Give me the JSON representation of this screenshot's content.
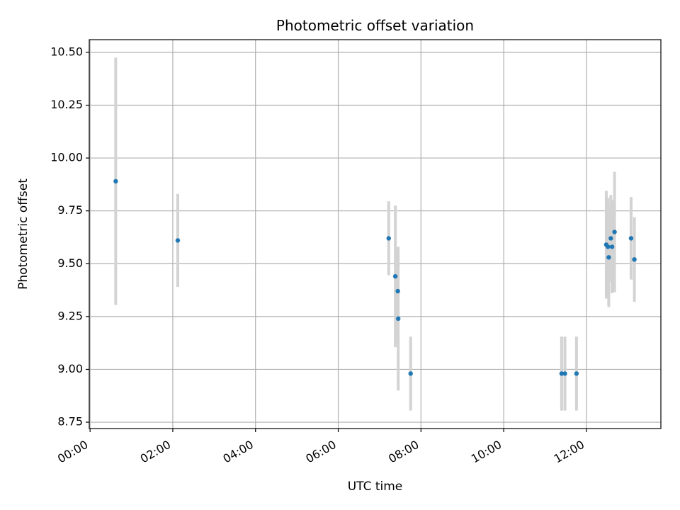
{
  "chart_data": {
    "type": "scatter",
    "title": "Photometric offset variation",
    "xlabel": "UTC time",
    "ylabel": "Photometric offset",
    "x_unit": "hours (UTC)",
    "xlim": [
      -0.02,
      13.8
    ],
    "ylim": [
      8.72,
      10.56
    ],
    "x_ticks": [
      {
        "value": 0,
        "label": "00:00"
      },
      {
        "value": 2,
        "label": "02:00"
      },
      {
        "value": 4,
        "label": "04:00"
      },
      {
        "value": 6,
        "label": "06:00"
      },
      {
        "value": 8,
        "label": "08:00"
      },
      {
        "value": 10,
        "label": "10:00"
      },
      {
        "value": 12,
        "label": "12:00"
      }
    ],
    "y_ticks": [
      {
        "value": 8.75,
        "label": "8.75"
      },
      {
        "value": 9.0,
        "label": "9.00"
      },
      {
        "value": 9.25,
        "label": "9.25"
      },
      {
        "value": 9.5,
        "label": "9.50"
      },
      {
        "value": 9.75,
        "label": "9.75"
      },
      {
        "value": 10.0,
        "label": "10.00"
      },
      {
        "value": 10.25,
        "label": "10.25"
      },
      {
        "value": 10.5,
        "label": "10.50"
      }
    ],
    "grid": true,
    "colors": {
      "point": "#1f77b4",
      "errorbar": "#d3d3d3",
      "grid": "#b0b0b0"
    },
    "points": [
      {
        "x": 0.62,
        "y": 9.89,
        "err": 0.585
      },
      {
        "x": 2.12,
        "y": 9.61,
        "err": 0.22
      },
      {
        "x": 7.22,
        "y": 9.62,
        "err": 0.175
      },
      {
        "x": 7.38,
        "y": 9.44,
        "err": 0.335
      },
      {
        "x": 7.44,
        "y": 9.37,
        "err": 0.21
      },
      {
        "x": 7.45,
        "y": 9.24,
        "err": 0.34
      },
      {
        "x": 7.75,
        "y": 8.98,
        "err": 0.175
      },
      {
        "x": 11.4,
        "y": 8.98,
        "err": 0.175
      },
      {
        "x": 11.48,
        "y": 8.98,
        "err": 0.175
      },
      {
        "x": 11.76,
        "y": 8.98,
        "err": 0.175
      },
      {
        "x": 12.48,
        "y": 9.59,
        "err": 0.255
      },
      {
        "x": 12.52,
        "y": 9.58,
        "err": 0.23
      },
      {
        "x": 12.54,
        "y": 9.53,
        "err": 0.235
      },
      {
        "x": 12.59,
        "y": 9.62,
        "err": 0.205
      },
      {
        "x": 12.62,
        "y": 9.58,
        "err": 0.22
      },
      {
        "x": 12.68,
        "y": 9.65,
        "err": 0.285
      },
      {
        "x": 13.08,
        "y": 9.62,
        "err": 0.195
      },
      {
        "x": 13.16,
        "y": 9.52,
        "err": 0.2
      }
    ]
  }
}
